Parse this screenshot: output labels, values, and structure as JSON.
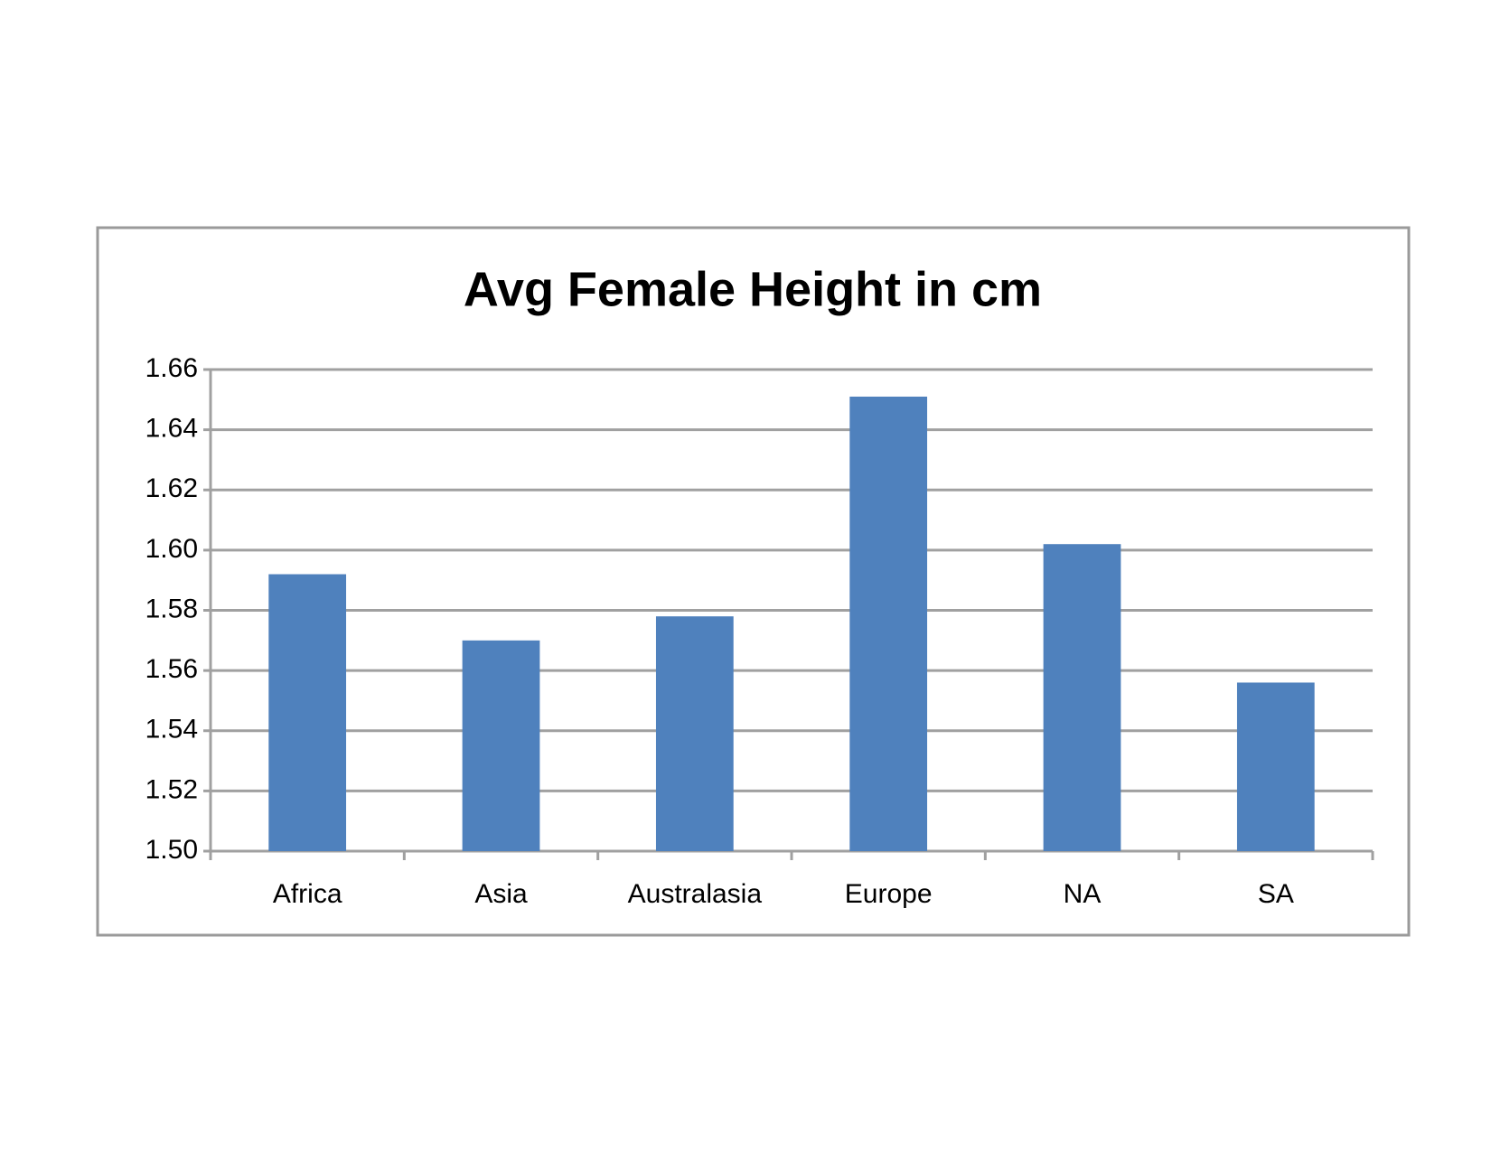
{
  "chart_data": {
    "type": "bar",
    "title": "Avg Female Height in cm",
    "categories": [
      "Africa",
      "Asia",
      "Australasia",
      "Europe",
      "NA",
      "SA"
    ],
    "values": [
      1.592,
      1.57,
      1.578,
      1.651,
      1.602,
      1.556
    ],
    "color": "#4f81bd",
    "ylim": [
      1.5,
      1.66
    ],
    "yticks": [
      {
        "value": 1.5,
        "label": "1.50"
      },
      1.52,
      1.54,
      1.56,
      1.58,
      {
        "value": 1.6,
        "label": "1.60"
      },
      1.62,
      1.64,
      1.66
    ],
    "grid": true
  }
}
